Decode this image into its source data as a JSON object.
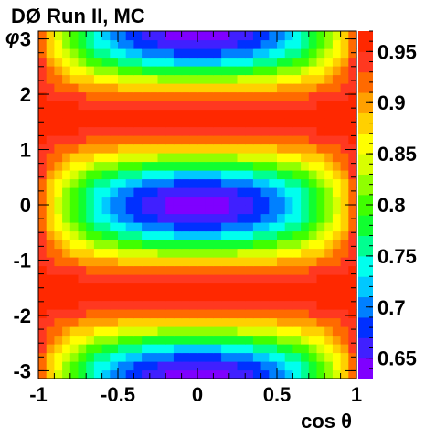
{
  "chart_data": {
    "type": "heatmap",
    "title": "DØ Run II, MC",
    "xlabel": "cos θ",
    "ylabel": "φ",
    "xlim": [
      -1,
      1
    ],
    "ylim": [
      -3.14159,
      3.14159
    ],
    "zlim": [
      0.63,
      0.97
    ],
    "x_ticks": [
      -1,
      -0.5,
      0,
      0.5,
      1
    ],
    "x_tick_labels": [
      "-1",
      "-0.5",
      "0",
      "0.5",
      "1"
    ],
    "y_ticks": [
      -3,
      -2,
      -1,
      0,
      1,
      2,
      3
    ],
    "y_tick_labels": [
      "-3",
      "-2",
      "-1",
      "0",
      "1",
      "2",
      "3"
    ],
    "z_ticks": [
      0.65,
      0.7,
      0.75,
      0.8,
      0.85,
      0.9,
      0.95
    ],
    "z_tick_labels": [
      "0.65",
      "0.7",
      "0.75",
      "0.8",
      "0.85",
      "0.9",
      "0.95"
    ],
    "grid": false,
    "bins": {
      "nx": 40,
      "ny": 40
    },
    "model": {
      "description_of_values": "acceptance-like surface, minimum ≈0.64 at (cos θ=0, φ=0) and (cos θ=0, φ=±π), maximum ≈0.96 near φ=±π/2",
      "z_min": 0.64,
      "z_max": 0.96,
      "min_at": [
        [
          0,
          0
        ],
        [
          0,
          3.14159
        ],
        [
          0,
          -3.14159
        ]
      ],
      "max_along_phi": [
        1.5708,
        -1.5708
      ]
    },
    "palette": [
      "#7f00ff",
      "#4020ff",
      "#0030ff",
      "#0080ff",
      "#00c8ff",
      "#00ffee",
      "#00ff90",
      "#10ff30",
      "#40ff00",
      "#90ff00",
      "#d8ff00",
      "#ffff00",
      "#ffd000",
      "#ffa000",
      "#ff6a00",
      "#ff3820",
      "#ff2800"
    ]
  }
}
